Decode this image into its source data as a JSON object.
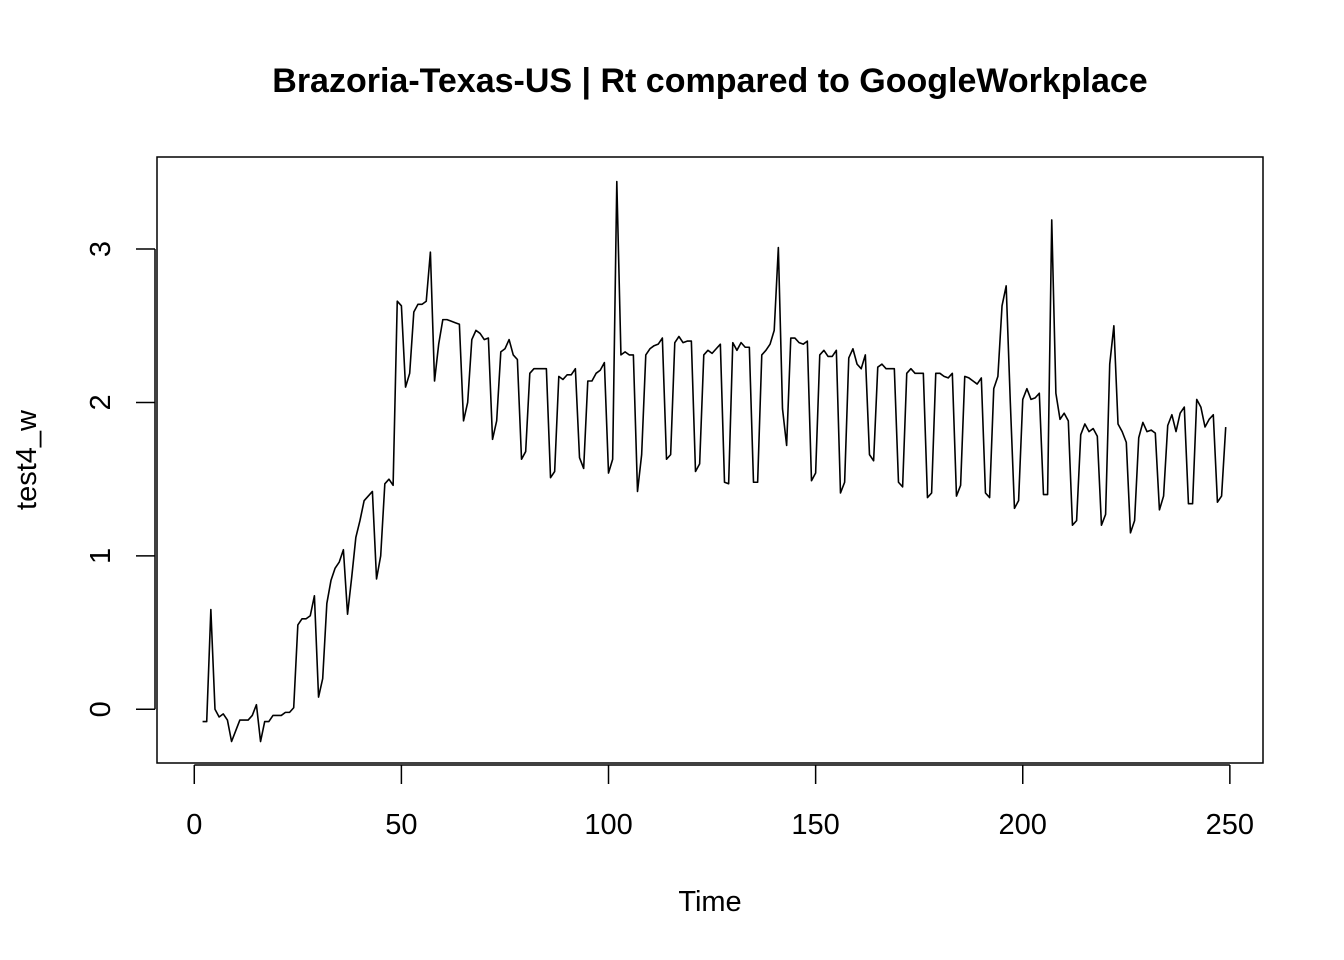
{
  "chart_data": {
    "type": "line",
    "title": "Brazoria-Texas-US | Rt compared to GoogleWorkplace",
    "xlabel": "Time",
    "ylabel": "test4_w",
    "xlim": [
      -9,
      258
    ],
    "ylim": [
      -0.35,
      3.6
    ],
    "x_ticks": [
      0,
      50,
      100,
      150,
      200,
      250
    ],
    "y_ticks": [
      0,
      1,
      2,
      3
    ],
    "grid": false,
    "legend": "none",
    "line_color": "#000000",
    "series": [
      {
        "x_start": 2,
        "x_step": 1,
        "values": [
          -0.08,
          -0.08,
          0.65,
          0.0,
          -0.05,
          -0.03,
          -0.07,
          -0.21,
          -0.14,
          -0.07,
          -0.07,
          -0.07,
          -0.04,
          0.03,
          -0.21,
          -0.08,
          -0.08,
          -0.04,
          -0.04,
          -0.04,
          -0.02,
          -0.02,
          0.01,
          0.55,
          0.59,
          0.59,
          0.61,
          0.74,
          0.08,
          0.2,
          0.69,
          0.84,
          0.92,
          0.96,
          1.04,
          0.62,
          0.86,
          1.12,
          1.23,
          1.36,
          1.39,
          1.42,
          0.85,
          1.0,
          1.47,
          1.5,
          1.46,
          2.66,
          2.63,
          2.1,
          2.19,
          2.59,
          2.64,
          2.64,
          2.66,
          2.98,
          2.14,
          2.38,
          2.54,
          2.54,
          2.53,
          2.52,
          2.51,
          1.88,
          2.0,
          2.41,
          2.47,
          2.45,
          2.41,
          2.42,
          1.76,
          1.88,
          2.33,
          2.35,
          2.41,
          2.31,
          2.28,
          1.63,
          1.68,
          2.19,
          2.22,
          2.22,
          2.22,
          2.22,
          1.51,
          1.55,
          2.17,
          2.15,
          2.18,
          2.18,
          2.22,
          1.64,
          1.57,
          2.14,
          2.14,
          2.19,
          2.21,
          2.26,
          1.54,
          1.63,
          3.44,
          2.31,
          2.33,
          2.31,
          2.31,
          1.42,
          1.66,
          2.31,
          2.35,
          2.37,
          2.38,
          2.42,
          1.63,
          1.66,
          2.39,
          2.43,
          2.39,
          2.4,
          2.4,
          1.55,
          1.6,
          2.31,
          2.34,
          2.32,
          2.35,
          2.38,
          1.48,
          1.47,
          2.39,
          2.34,
          2.39,
          2.36,
          2.36,
          1.48,
          1.48,
          2.31,
          2.34,
          2.38,
          2.47,
          3.01,
          1.96,
          1.72,
          2.42,
          2.42,
          2.39,
          2.38,
          2.4,
          1.49,
          1.54,
          2.31,
          2.34,
          2.3,
          2.3,
          2.34,
          1.41,
          1.48,
          2.29,
          2.35,
          2.25,
          2.22,
          2.31,
          1.66,
          1.62,
          2.23,
          2.25,
          2.22,
          2.22,
          2.22,
          1.48,
          1.45,
          2.19,
          2.22,
          2.19,
          2.19,
          2.19,
          1.38,
          1.41,
          2.19,
          2.19,
          2.17,
          2.16,
          2.19,
          1.39,
          1.46,
          2.17,
          2.16,
          2.14,
          2.12,
          2.16,
          1.41,
          1.38,
          2.09,
          2.17,
          2.63,
          2.76,
          2.0,
          1.31,
          1.36,
          2.02,
          2.09,
          2.02,
          2.03,
          2.06,
          1.4,
          1.4,
          3.19,
          2.06,
          1.89,
          1.93,
          1.88,
          1.2,
          1.23,
          1.79,
          1.86,
          1.81,
          1.83,
          1.78,
          1.2,
          1.27,
          2.25,
          2.5,
          1.86,
          1.81,
          1.74,
          1.15,
          1.23,
          1.77,
          1.87,
          1.81,
          1.82,
          1.8,
          1.3,
          1.39,
          1.85,
          1.92,
          1.81,
          1.93,
          1.97,
          1.34,
          1.34,
          2.02,
          1.97,
          1.84,
          1.89,
          1.92,
          1.35,
          1.39,
          1.84
        ]
      }
    ]
  }
}
